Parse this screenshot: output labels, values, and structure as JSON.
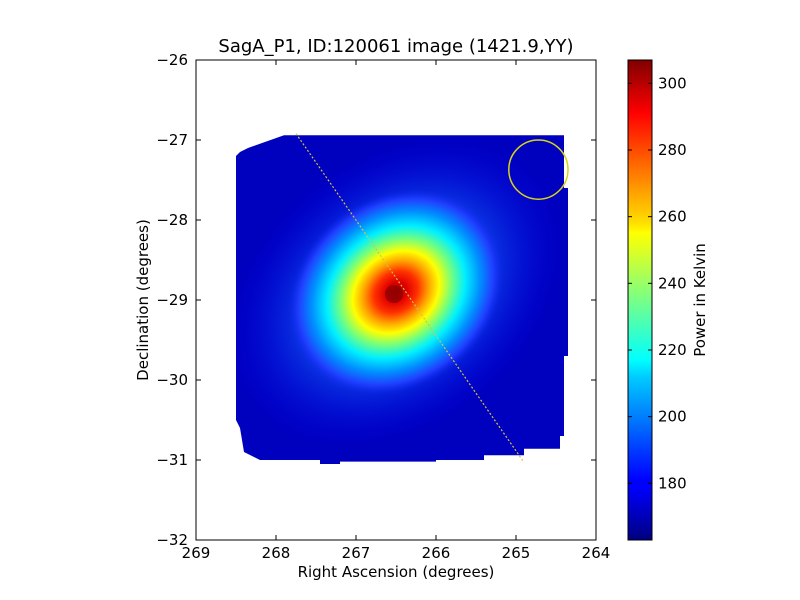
{
  "chart_data": {
    "type": "heatmap",
    "title": "SagA_P1, ID:120061 image (1421.9,YY)",
    "xlabel": "Right Ascension (degrees)",
    "ylabel": "Declination (degrees)",
    "xlim": [
      269,
      264
    ],
    "ylim": [
      -32,
      -26
    ],
    "x_ticks": [
      269,
      268,
      267,
      266,
      265,
      264
    ],
    "x_tick_labels": [
      "269",
      "268",
      "267",
      "266",
      "265",
      "264"
    ],
    "y_ticks": [
      -26,
      -27,
      -28,
      -29,
      -30,
      -31,
      -32
    ],
    "y_tick_labels": [
      "−26",
      "−27",
      "−28",
      "−29",
      "−30",
      "−31",
      "−32"
    ],
    "colormap": "jet",
    "colorbar": {
      "label": "Power in Kelvin",
      "range": [
        163,
        307
      ],
      "ticks": [
        180,
        200,
        220,
        240,
        260,
        280,
        300
      ],
      "tick_labels": [
        "180",
        "200",
        "220",
        "240",
        "260",
        "280",
        "300"
      ]
    },
    "map": {
      "background_level": 172,
      "peak": {
        "ra": 266.5,
        "dec": -28.9,
        "value": 305
      },
      "region_polygon": [
        [
          267.9,
          -26.94
        ],
        [
          264.4,
          -26.94
        ],
        [
          264.4,
          -27.6
        ],
        [
          264.35,
          -27.6
        ],
        [
          264.35,
          -29.7
        ],
        [
          264.4,
          -29.7
        ],
        [
          264.4,
          -30.7
        ],
        [
          264.45,
          -30.7
        ],
        [
          264.45,
          -30.86
        ],
        [
          264.9,
          -30.86
        ],
        [
          264.9,
          -30.94
        ],
        [
          265.4,
          -30.94
        ],
        [
          265.4,
          -31.0
        ],
        [
          266.0,
          -31.0
        ],
        [
          266.0,
          -31.02
        ],
        [
          267.2,
          -31.02
        ],
        [
          267.2,
          -31.05
        ],
        [
          267.45,
          -31.05
        ],
        [
          267.45,
          -31.0
        ],
        [
          268.2,
          -31.0
        ],
        [
          268.4,
          -30.9
        ],
        [
          268.45,
          -30.6
        ],
        [
          268.5,
          -30.5
        ],
        [
          268.5,
          -27.2
        ],
        [
          268.45,
          -27.15
        ],
        [
          268.35,
          -27.1
        ]
      ]
    },
    "overlays": {
      "scan_line": {
        "from": [
          267.75,
          -26.92
        ],
        "to": [
          264.9,
          -31.03
        ],
        "color": "#d4c24a",
        "style": "dotted"
      },
      "circle": {
        "center": [
          264.72,
          -27.37
        ],
        "radius_deg": 0.37,
        "color": "#d9d21a"
      }
    }
  }
}
